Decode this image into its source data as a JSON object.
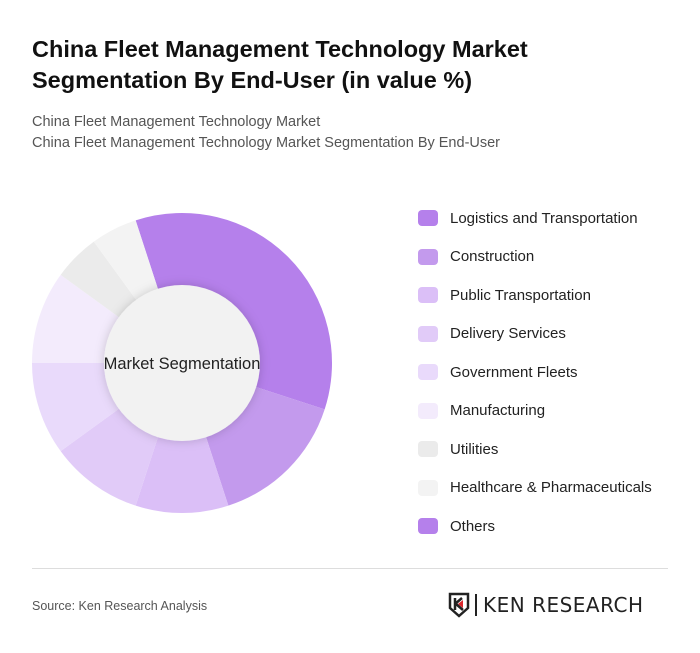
{
  "title": "China Fleet Management Technology Market Segmentation By End-User (in value %)",
  "subtitle_1": "China Fleet Management Technology Market",
  "subtitle_2": "China Fleet Management Technology Market Segmentation By End-User",
  "source": "Source: Ken Research Analysis",
  "logo_text": "KEN RESEARCH",
  "chart_data": {
    "type": "pie",
    "variant": "donut",
    "center_label": "Market Segmentation",
    "legend_position": "right",
    "unit": "%",
    "categories": [
      "Logistics and Transportation",
      "Construction",
      "Public Transportation",
      "Delivery Services",
      "Government Fleets",
      "Manufacturing",
      "Utilities",
      "Healthcare & Pharmaceuticals",
      "Others"
    ],
    "values": [
      35,
      15,
      10,
      10,
      10,
      10,
      5,
      5,
      0
    ],
    "colors": [
      "#b580eb",
      "#c39aed",
      "#dbbff7",
      "#e1cbf8",
      "#e9dafb",
      "#f3ebfc",
      "#ebebeb",
      "#f3f3f3",
      "#b580eb"
    ]
  }
}
